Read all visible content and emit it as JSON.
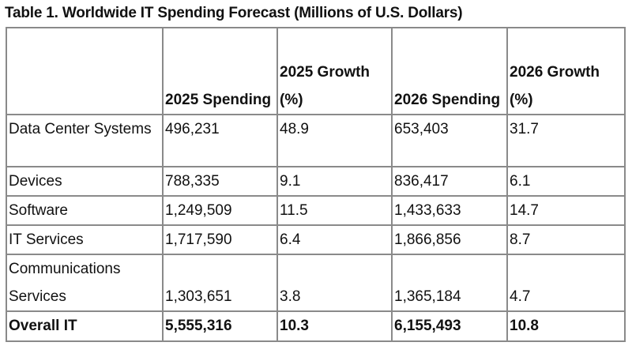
{
  "title": "Table 1. Worldwide IT Spending Forecast (Millions of U.S. Dollars)",
  "columns": [
    "",
    "2025 Spending",
    "2025 Growth (%)",
    "2026 Spending",
    "2026 Growth (%)"
  ],
  "rows": [
    [
      "Data Center Systems",
      "496,231",
      "48.9",
      "653,403",
      "31.7"
    ],
    [
      "Devices",
      "788,335",
      "9.1",
      "836,417",
      "6.1"
    ],
    [
      "Software",
      "1,249,509",
      "11.5",
      "1,433,633",
      "14.7"
    ],
    [
      "IT Services",
      "1,717,590",
      "6.4",
      "1,866,856",
      "8.7"
    ],
    [
      "Communications Services",
      "1,303,651",
      "3.8",
      "1,365,184",
      "4.7"
    ]
  ],
  "total": [
    "Overall IT",
    "5,555,316",
    "10.3",
    "6,155,493",
    "10.8"
  ]
}
